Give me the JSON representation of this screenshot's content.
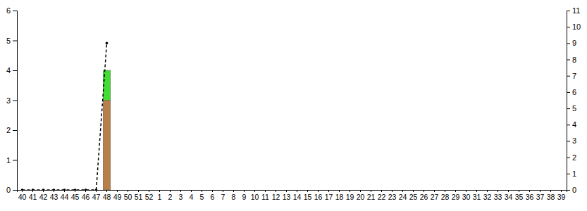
{
  "chart_data": {
    "type": "bar",
    "stacked": true,
    "categories": [
      "40",
      "41",
      "42",
      "43",
      "44",
      "45",
      "46",
      "47",
      "48",
      "49",
      "50",
      "51",
      "52",
      "1",
      "2",
      "3",
      "4",
      "5",
      "6",
      "7",
      "8",
      "9",
      "10",
      "11",
      "12",
      "13",
      "14",
      "15",
      "16",
      "17",
      "18",
      "19",
      "20",
      "21",
      "22",
      "23",
      "24",
      "25",
      "26",
      "27",
      "28",
      "29",
      "30",
      "31",
      "32",
      "33",
      "34",
      "35",
      "36",
      "37",
      "38",
      "39"
    ],
    "series": [
      {
        "type": "bar",
        "color": "#b87f4a",
        "values": [
          0,
          0,
          0,
          0,
          0,
          0,
          0,
          0,
          3,
          null,
          null,
          null,
          null,
          null,
          null,
          null,
          null,
          null,
          null,
          null,
          null,
          null,
          null,
          null,
          null,
          null,
          null,
          null,
          null,
          null,
          null,
          null,
          null,
          null,
          null,
          null,
          null,
          null,
          null,
          null,
          null,
          null,
          null,
          null,
          null,
          null,
          null,
          null,
          null,
          null,
          null,
          null
        ]
      },
      {
        "type": "bar",
        "color": "#44dd33",
        "values": [
          0,
          0,
          0,
          0,
          0,
          0,
          0,
          0,
          1,
          null,
          null,
          null,
          null,
          null,
          null,
          null,
          null,
          null,
          null,
          null,
          null,
          null,
          null,
          null,
          null,
          null,
          null,
          null,
          null,
          null,
          null,
          null,
          null,
          null,
          null,
          null,
          null,
          null,
          null,
          null,
          null,
          null,
          null,
          null,
          null,
          null,
          null,
          null,
          null,
          null,
          null,
          null
        ]
      },
      {
        "type": "line",
        "axis": "y2",
        "color": "#000000",
        "line_style": "dashed",
        "marker": "circle",
        "values": [
          0,
          0,
          0,
          0,
          0,
          0,
          0,
          0,
          9,
          null,
          null,
          null,
          null,
          null,
          null,
          null,
          null,
          null,
          null,
          null,
          null,
          null,
          null,
          null,
          null,
          null,
          null,
          null,
          null,
          null,
          null,
          null,
          null,
          null,
          null,
          null,
          null,
          null,
          null,
          null,
          null,
          null,
          null,
          null,
          null,
          null,
          null,
          null,
          null,
          null,
          null,
          null
        ]
      }
    ],
    "ylim": [
      0,
      6
    ],
    "yticks": [
      0,
      1,
      2,
      3,
      4,
      5,
      6
    ],
    "y2lim": [
      0,
      11
    ],
    "y2ticks": [
      0,
      1,
      2,
      3,
      4,
      5,
      6,
      7,
      8,
      9,
      10,
      11
    ],
    "grid": false
  }
}
